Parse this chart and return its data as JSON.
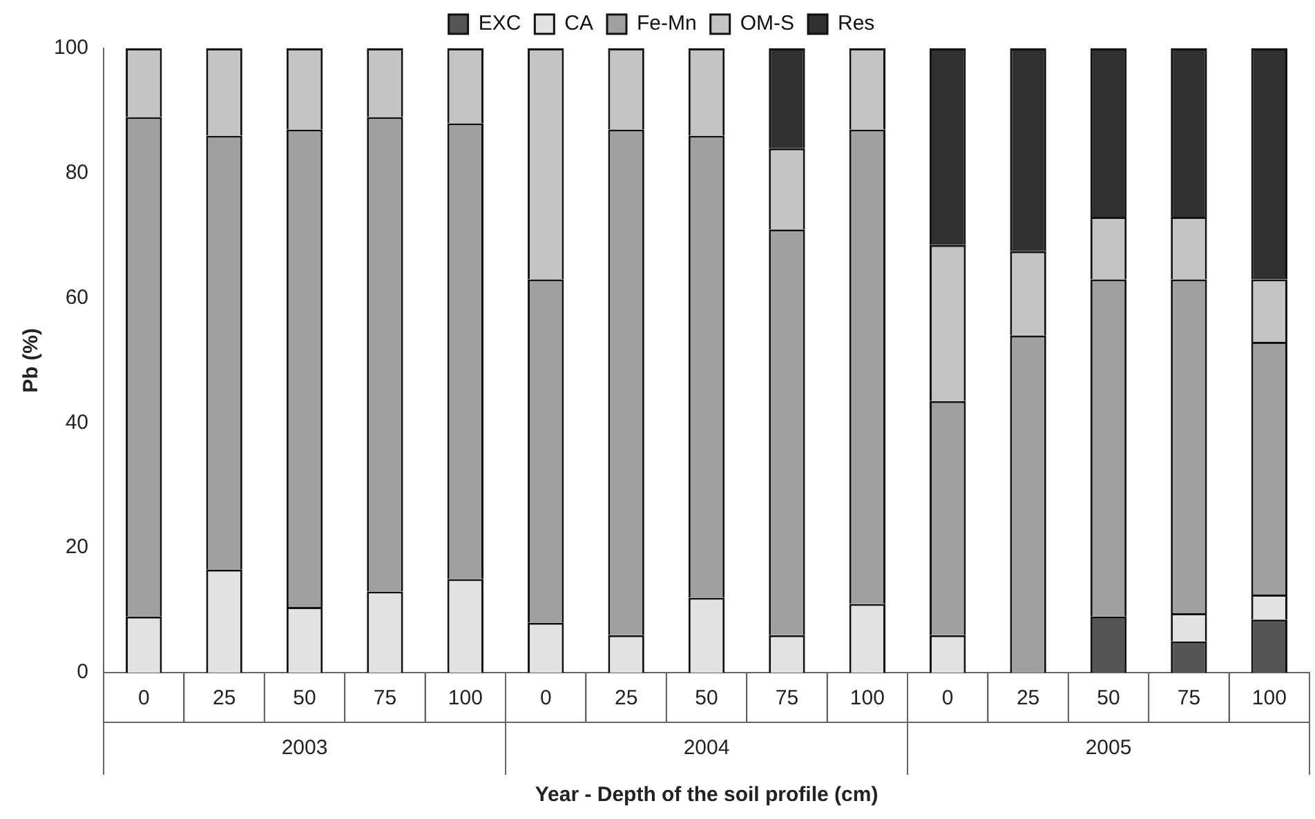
{
  "chart_data": {
    "type": "bar",
    "stacked": true,
    "ylabel": "Pb (%)",
    "xlabel": "Year - Depth of the soil profile (cm)",
    "categories": [
      "0",
      "25",
      "50",
      "75",
      "100",
      "0",
      "25",
      "50",
      "75",
      "100",
      "0",
      "25",
      "50",
      "75",
      "100"
    ],
    "annotations": [
      "2003",
      "2004",
      "2005"
    ],
    "series": [
      {
        "name": "EXC",
        "color": "#555555",
        "values": [
          0,
          0,
          0,
          0,
          0,
          0,
          0,
          0,
          0,
          0,
          0,
          0,
          9,
          5,
          8.5
        ]
      },
      {
        "name": "CA",
        "color": "#e2e2e2",
        "values": [
          9,
          16.5,
          10.5,
          13,
          15,
          8,
          6,
          12,
          6,
          11,
          6,
          0,
          0,
          4.5,
          4
        ]
      },
      {
        "name": "Fe-Mn",
        "color": "#a0a0a0",
        "values": [
          80,
          69.5,
          76.5,
          76,
          73,
          55,
          81,
          74,
          65,
          76,
          37.5,
          54,
          54,
          53.5,
          40.5
        ]
      },
      {
        "name": "OM-S",
        "color": "#c4c4c4",
        "values": [
          11,
          14,
          13,
          11,
          12,
          37,
          13,
          14,
          13,
          13,
          25,
          13.5,
          10,
          10,
          10
        ]
      },
      {
        "name": "Res",
        "color": "#303030",
        "values": [
          0,
          0,
          0,
          0,
          0,
          0,
          0,
          0,
          16,
          0,
          31.5,
          32.5,
          27,
          27,
          37
        ]
      }
    ],
    "ylim": [
      0,
      100
    ],
    "yticks": [
      0,
      20,
      40,
      60,
      80,
      100
    ],
    "grid": false,
    "legend": "top"
  }
}
